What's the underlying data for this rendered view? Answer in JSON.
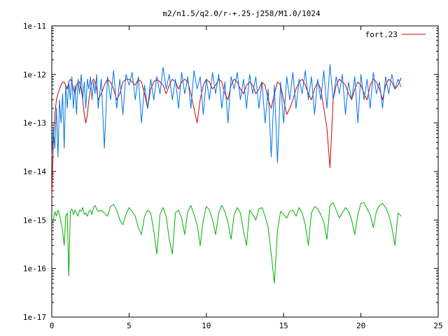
{
  "chart_data": {
    "type": "line",
    "title": "m2/n1.5/q2.0/r-+.25-j258/M1.0/1024",
    "xlabel": "",
    "ylabel": "",
    "xlim": [
      0,
      25
    ],
    "ylim": [
      1e-17,
      1e-11
    ],
    "y_scale": "log",
    "grid": false,
    "legend_position": "top-right",
    "x_ticks": [
      0,
      5,
      10,
      15,
      20,
      25
    ],
    "x_tick_labels": [
      "0",
      "5",
      "10",
      "15",
      "20",
      "25"
    ],
    "y_ticks": [
      1e-11,
      1e-12,
      1e-13,
      1e-14,
      1e-15,
      1e-16,
      1e-17
    ],
    "y_tick_labels": [
      "1e-11",
      "1e-12",
      "1e-13",
      "1e-14",
      "1e-15",
      "1e-16",
      "1e-17"
    ],
    "series": [
      {
        "name": "fort.23",
        "color": "#cc0000",
        "x": [
          0.0,
          0.1,
          0.2,
          0.3,
          0.4,
          0.5,
          0.6,
          0.7,
          0.8,
          0.9,
          1.0,
          1.1,
          1.2,
          1.3,
          1.4,
          1.5,
          1.6,
          1.7,
          1.8,
          1.9,
          2.0,
          2.1,
          2.2,
          2.3,
          2.4,
          2.5,
          2.6,
          2.7,
          2.8,
          2.9,
          3.0,
          3.2,
          3.4,
          3.6,
          3.8,
          4.0,
          4.2,
          4.4,
          4.6,
          4.8,
          5.0,
          5.2,
          5.4,
          5.6,
          5.8,
          6.0,
          6.2,
          6.4,
          6.6,
          6.8,
          7.0,
          7.2,
          7.4,
          7.6,
          7.8,
          8.0,
          8.2,
          8.4,
          8.6,
          8.8,
          9.0,
          9.2,
          9.4,
          9.6,
          9.8,
          10.0,
          10.2,
          10.4,
          10.6,
          10.8,
          11.0,
          11.2,
          11.4,
          11.6,
          11.8,
          12.0,
          12.2,
          12.4,
          12.6,
          12.8,
          13.0,
          13.2,
          13.4,
          13.6,
          13.8,
          14.0,
          14.2,
          14.4,
          14.6,
          14.8,
          15.0,
          15.2,
          15.4,
          15.6,
          15.8,
          16.0,
          16.2,
          16.4,
          16.6,
          16.8,
          17.0,
          17.2,
          17.4,
          17.6,
          17.8,
          18.0,
          18.2,
          18.4,
          18.6,
          18.8,
          19.0,
          19.2,
          19.4,
          19.6,
          19.8,
          20.0,
          20.2,
          20.4,
          20.6,
          20.8,
          21.0,
          21.2,
          21.4,
          21.6,
          21.8,
          22.0,
          22.2,
          22.4,
          22.6
        ],
        "y": [
          3e-15,
          4e-14,
          1.5e-13,
          3e-13,
          4e-13,
          5e-13,
          6e-13,
          7e-13,
          7e-13,
          6e-13,
          5e-13,
          7e-13,
          8e-13,
          7e-13,
          5e-13,
          4e-13,
          6e-13,
          7e-13,
          7e-13,
          5e-13,
          3e-13,
          1.5e-13,
          1e-13,
          1.5e-13,
          3e-13,
          5e-13,
          7e-13,
          8e-13,
          7e-13,
          5e-13,
          3e-13,
          4e-13,
          6e-13,
          8e-13,
          7e-13,
          5e-13,
          3e-13,
          4e-13,
          7e-13,
          8e-13,
          8e-13,
          7e-13,
          6e-13,
          8e-13,
          7e-13,
          4e-13,
          2e-13,
          5e-13,
          7e-13,
          8e-13,
          7e-13,
          6e-13,
          4e-13,
          6e-13,
          8e-13,
          7e-13,
          5e-13,
          7e-13,
          8e-13,
          7e-13,
          4e-13,
          2e-13,
          1e-13,
          3e-13,
          6e-13,
          8e-13,
          7e-13,
          5e-13,
          6e-13,
          8e-13,
          7e-13,
          4e-13,
          3e-13,
          6e-13,
          8e-13,
          7e-13,
          5e-13,
          4e-13,
          6e-13,
          7e-13,
          6e-13,
          4e-13,
          5e-13,
          7e-13,
          6e-13,
          3e-13,
          2e-13,
          4e-13,
          7e-13,
          6e-13,
          3e-13,
          1.5e-13,
          2e-13,
          3e-13,
          5e-13,
          7e-13,
          8e-13,
          6e-13,
          4e-13,
          3e-13,
          5e-13,
          7e-13,
          5e-13,
          2e-13,
          8e-14,
          1.2e-14,
          3e-13,
          6e-13,
          8e-13,
          7e-13,
          6e-13,
          4e-13,
          3e-13,
          5e-13,
          7e-13,
          6e-13,
          4e-13,
          3e-13,
          6e-13,
          8e-13,
          7e-13,
          5e-13,
          3e-13,
          6e-13,
          8e-13,
          7e-13,
          5e-13,
          6e-13,
          8.5e-13
        ]
      },
      {
        "name": "",
        "color": "#0073e6",
        "x": [
          0.0,
          0.1,
          0.2,
          0.3,
          0.4,
          0.5,
          0.6,
          0.7,
          0.8,
          0.9,
          1.0,
          1.1,
          1.2,
          1.3,
          1.4,
          1.5,
          1.6,
          1.7,
          1.8,
          1.9,
          2.0,
          2.1,
          2.2,
          2.3,
          2.4,
          2.5,
          2.6,
          2.7,
          2.8,
          2.9,
          3.0,
          3.2,
          3.4,
          3.6,
          3.8,
          4.0,
          4.2,
          4.4,
          4.6,
          4.8,
          5.0,
          5.2,
          5.4,
          5.6,
          5.8,
          6.0,
          6.2,
          6.4,
          6.6,
          6.8,
          7.0,
          7.2,
          7.4,
          7.6,
          7.8,
          8.0,
          8.2,
          8.4,
          8.6,
          8.8,
          9.0,
          9.2,
          9.4,
          9.6,
          9.8,
          10.0,
          10.2,
          10.4,
          10.6,
          10.8,
          11.0,
          11.2,
          11.4,
          11.6,
          11.8,
          12.0,
          12.2,
          12.4,
          12.6,
          12.8,
          13.0,
          13.2,
          13.4,
          13.6,
          13.8,
          14.0,
          14.2,
          14.4,
          14.6,
          14.8,
          15.0,
          15.2,
          15.4,
          15.6,
          15.8,
          16.0,
          16.2,
          16.4,
          16.6,
          16.8,
          17.0,
          17.2,
          17.4,
          17.6,
          17.8,
          18.0,
          18.2,
          18.4,
          18.6,
          18.8,
          19.0,
          19.2,
          19.4,
          19.6,
          19.8,
          20.0,
          20.2,
          20.4,
          20.6,
          20.8,
          21.0,
          21.2,
          21.4,
          21.6,
          21.8,
          22.0,
          22.2,
          22.4,
          22.6
        ],
        "y": [
          2e-14,
          8e-14,
          3e-14,
          2e-13,
          2e-14,
          3e-13,
          1e-13,
          4e-13,
          3e-14,
          6e-13,
          2e-13,
          7e-13,
          3e-13,
          9e-13,
          2e-13,
          6e-13,
          1.5e-13,
          8e-13,
          4e-13,
          1e-12,
          3e-13,
          7e-13,
          2e-13,
          8e-13,
          5e-13,
          9e-13,
          3e-13,
          7e-13,
          4e-13,
          1e-12,
          2e-13,
          8e-13,
          3e-14,
          9e-13,
          3e-13,
          1.2e-12,
          2e-13,
          8e-13,
          1.5e-13,
          1e-12,
          6e-13,
          1.1e-12,
          3e-13,
          9e-13,
          1e-13,
          6e-13,
          2e-13,
          8e-13,
          3e-13,
          9e-13,
          4e-13,
          1.4e-12,
          5e-13,
          1e-12,
          3e-13,
          8e-13,
          2e-13,
          1.1e-12,
          4e-13,
          9e-13,
          2e-13,
          1.2e-12,
          5e-13,
          9e-13,
          1.5e-13,
          8e-13,
          3e-13,
          1.1e-12,
          4e-13,
          1e-12,
          2e-13,
          7e-13,
          1e-13,
          9e-13,
          5e-13,
          1.1e-12,
          3e-13,
          8e-13,
          2e-13,
          1e-12,
          4e-13,
          9e-13,
          2e-13,
          7e-13,
          1e-13,
          5e-13,
          2e-14,
          6e-13,
          1.5e-14,
          7e-13,
          1e-13,
          9e-13,
          3e-13,
          1.1e-12,
          2e-13,
          8e-13,
          4e-13,
          1.2e-12,
          3e-13,
          9e-13,
          1.5e-13,
          8e-13,
          3e-13,
          1.2e-12,
          2e-13,
          1.6e-12,
          3e-13,
          9e-13,
          4e-13,
          1e-12,
          1.5e-13,
          7e-13,
          3e-13,
          9e-13,
          1e-13,
          1e-12,
          3e-13,
          8e-13,
          2e-13,
          1.1e-12,
          4e-13,
          7e-13,
          2e-13,
          9e-13,
          4e-13,
          1e-12,
          5e-13,
          8e-13,
          5.5e-13
        ]
      },
      {
        "name": "",
        "color": "#00b000",
        "x": [
          0.0,
          0.1,
          0.2,
          0.3,
          0.4,
          0.5,
          0.6,
          0.7,
          0.8,
          0.9,
          1.0,
          1.1,
          1.2,
          1.3,
          1.4,
          1.5,
          1.6,
          1.7,
          1.8,
          1.9,
          2.0,
          2.1,
          2.2,
          2.3,
          2.4,
          2.5,
          2.6,
          2.7,
          2.8,
          2.9,
          3.0,
          3.2,
          3.4,
          3.6,
          3.8,
          4.0,
          4.2,
          4.4,
          4.6,
          4.8,
          5.0,
          5.2,
          5.4,
          5.6,
          5.8,
          6.0,
          6.2,
          6.4,
          6.6,
          6.8,
          7.0,
          7.2,
          7.4,
          7.6,
          7.8,
          8.0,
          8.2,
          8.4,
          8.6,
          8.8,
          9.0,
          9.2,
          9.4,
          9.6,
          9.8,
          10.0,
          10.2,
          10.4,
          10.6,
          10.8,
          11.0,
          11.2,
          11.4,
          11.6,
          11.8,
          12.0,
          12.2,
          12.4,
          12.6,
          12.8,
          13.0,
          13.2,
          13.4,
          13.6,
          13.8,
          14.0,
          14.2,
          14.4,
          14.6,
          14.8,
          15.0,
          15.2,
          15.4,
          15.6,
          15.8,
          16.0,
          16.2,
          16.4,
          16.6,
          16.8,
          17.0,
          17.2,
          17.4,
          17.6,
          17.8,
          18.0,
          18.2,
          18.4,
          18.6,
          18.8,
          19.0,
          19.2,
          19.4,
          19.6,
          19.8,
          20.0,
          20.2,
          20.4,
          20.6,
          20.8,
          21.0,
          21.2,
          21.4,
          21.6,
          21.8,
          22.0,
          22.2,
          22.4,
          22.6
        ],
        "y": [
          8e-16,
          1e-15,
          1.5e-15,
          1.2e-15,
          1.6e-15,
          1.3e-15,
          9e-16,
          6e-16,
          3e-16,
          1.2e-15,
          1.4e-15,
          7e-17,
          1.5e-15,
          1.7e-15,
          1.3e-15,
          1.6e-15,
          1.4e-15,
          1.2e-15,
          1.6e-15,
          1.5e-15,
          1.8e-15,
          1.3e-15,
          1.4e-15,
          1.2e-15,
          1.5e-15,
          1.6e-15,
          1.3e-15,
          1.8e-15,
          2e-15,
          1.7e-15,
          1.5e-15,
          1.6e-15,
          1.4e-15,
          1.2e-15,
          1.9e-15,
          2.1e-15,
          1.6e-15,
          1e-15,
          8e-16,
          1.3e-15,
          1.8e-15,
          1.5e-15,
          1.2e-15,
          7e-16,
          5e-16,
          1.2e-15,
          1.6e-15,
          1.4e-15,
          6e-16,
          2e-16,
          1.3e-15,
          1.8e-15,
          1.2e-15,
          4e-16,
          2e-16,
          1.4e-15,
          1.6e-15,
          1.1e-15,
          5e-16,
          1.5e-15,
          2e-15,
          1.3e-15,
          8e-16,
          3e-16,
          1e-15,
          1.9e-15,
          1.6e-15,
          1e-15,
          5e-16,
          1.4e-15,
          2e-15,
          1.5e-15,
          9e-16,
          4e-16,
          1.3e-15,
          1.8e-15,
          1.4e-15,
          6e-16,
          3e-16,
          1.6e-15,
          1.3e-15,
          1e-15,
          1.7e-15,
          1.8e-15,
          1.2e-15,
          7e-16,
          2e-16,
          5e-17,
          6e-16,
          1.5e-15,
          1.3e-15,
          1.1e-15,
          1.5e-15,
          1.6e-15,
          1.2e-15,
          1.8e-15,
          1.4e-15,
          8e-16,
          3e-16,
          1.4e-15,
          1.9e-15,
          1.7e-15,
          1.3e-15,
          9e-16,
          4e-16,
          2e-15,
          2.3e-15,
          1.6e-15,
          1.1e-15,
          1.4e-15,
          1.8e-15,
          1.5e-15,
          1e-15,
          5e-16,
          1.3e-15,
          2.2e-15,
          2.3e-15,
          1.7e-15,
          1.3e-15,
          7e-16,
          1.5e-15,
          2e-15,
          2.2e-15,
          1.8e-15,
          1.3e-15,
          7e-16,
          3e-16,
          1.4e-15,
          1.2e-15
        ]
      }
    ]
  }
}
